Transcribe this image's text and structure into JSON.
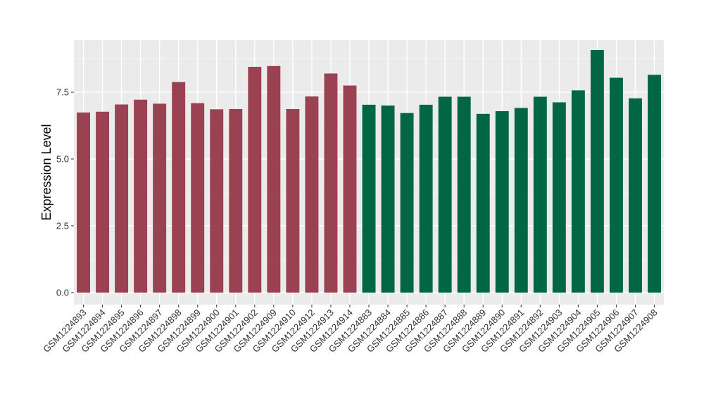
{
  "chart_data": {
    "type": "bar",
    "title": "",
    "xlabel": "",
    "ylabel": "Expression Level",
    "ylim": [
      -0.45,
      9.45
    ],
    "yticks": [
      0.0,
      2.5,
      5.0,
      7.5
    ],
    "ytick_labels": [
      "0.0",
      "2.5",
      "5.0",
      "7.5"
    ],
    "grid": true,
    "legend": "none",
    "panel_background": "#ebebeb",
    "categories": [
      "GSM1224893",
      "GSM1224894",
      "GSM1224895",
      "GSM1224896",
      "GSM1224897",
      "GSM1224898",
      "GSM1224899",
      "GSM1224900",
      "GSM1224901",
      "GSM1224902",
      "GSM1224909",
      "GSM1224910",
      "GSM1224912",
      "GSM1224913",
      "GSM1224914",
      "GSM1224883",
      "GSM1224884",
      "GSM1224885",
      "GSM1224886",
      "GSM1224887",
      "GSM1224888",
      "GSM1224889",
      "GSM1224890",
      "GSM1224891",
      "GSM1224892",
      "GSM1224903",
      "GSM1224904",
      "GSM1224905",
      "GSM1224906",
      "GSM1224907",
      "GSM1224908"
    ],
    "values": [
      6.74,
      6.77,
      7.04,
      7.22,
      7.07,
      7.88,
      7.09,
      6.86,
      6.87,
      8.45,
      8.48,
      6.87,
      7.34,
      8.2,
      7.75,
      7.03,
      7.0,
      6.72,
      7.03,
      7.33,
      7.33,
      6.69,
      6.79,
      6.91,
      7.33,
      7.12,
      7.57,
      9.08,
      8.04,
      7.27,
      8.15
    ],
    "group_colors": [
      "#9a4251",
      "#9a4251",
      "#9a4251",
      "#9a4251",
      "#9a4251",
      "#9a4251",
      "#9a4251",
      "#9a4251",
      "#9a4251",
      "#9a4251",
      "#9a4251",
      "#9a4251",
      "#9a4251",
      "#9a4251",
      "#9a4251",
      "#006644",
      "#006644",
      "#006644",
      "#006644",
      "#006644",
      "#006644",
      "#006644",
      "#006644",
      "#006644",
      "#006644",
      "#006644",
      "#006644",
      "#006644",
      "#006644",
      "#006644",
      "#006644"
    ]
  }
}
